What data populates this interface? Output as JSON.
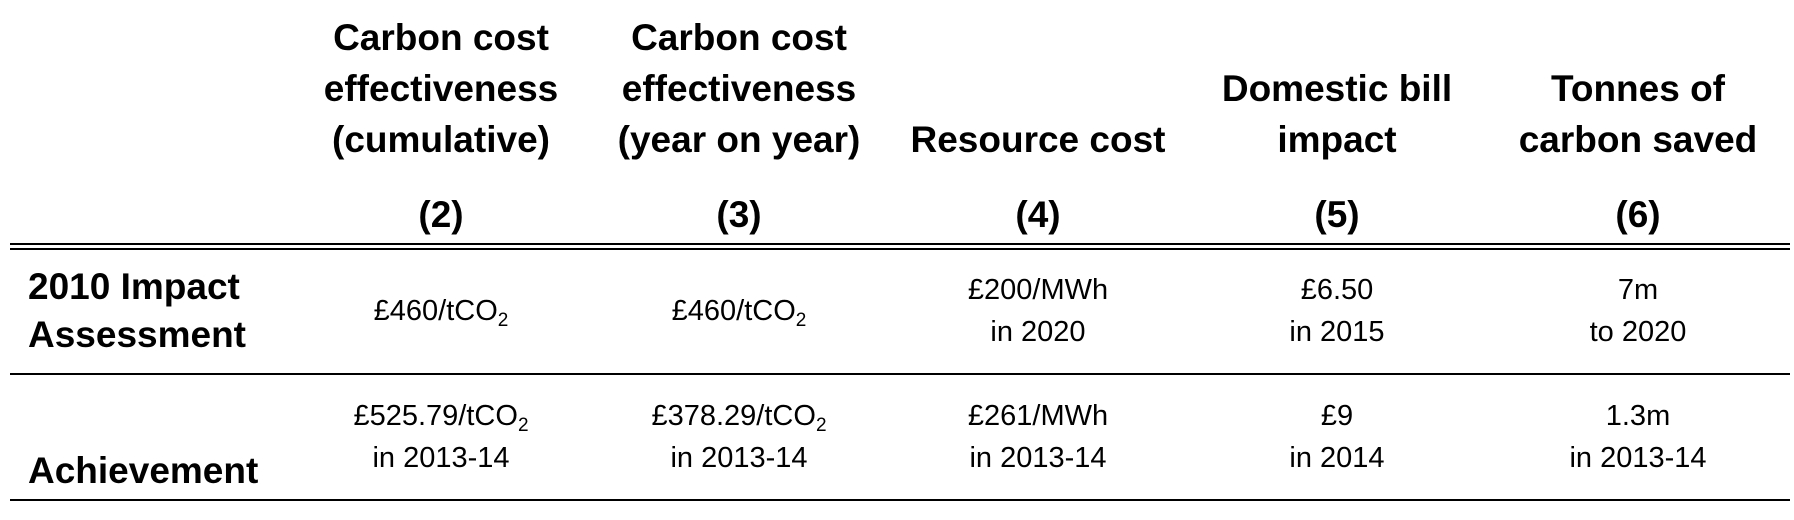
{
  "table": {
    "columns": [
      {
        "lines": [
          "Carbon cost",
          "effectiveness",
          "(cumulative)"
        ],
        "number": "(2)"
      },
      {
        "lines": [
          "Carbon cost",
          "effectiveness",
          "(year on year)"
        ],
        "number": "(3)"
      },
      {
        "lines": [
          "Resource cost"
        ],
        "number": "(4)"
      },
      {
        "lines": [
          "Domestic bill",
          "impact"
        ],
        "number": "(5)"
      },
      {
        "lines": [
          "Tonnes of",
          "carbon saved"
        ],
        "number": "(6)"
      }
    ],
    "rows": [
      {
        "label_lines": [
          "2010 Impact",
          "Assessment"
        ],
        "cells": [
          {
            "value": "£460/tCO",
            "sub": "2",
            "note": ""
          },
          {
            "value": "£460/tCO",
            "sub": "2",
            "note": ""
          },
          {
            "value": "£200/MWh",
            "sub": "",
            "note": "in 2020"
          },
          {
            "value": "£6.50",
            "sub": "",
            "note": "in 2015"
          },
          {
            "value": "7m",
            "sub": "",
            "note": "to 2020"
          }
        ]
      },
      {
        "label_lines": [
          "Achievement"
        ],
        "cells": [
          {
            "value": "£525.79/tCO",
            "sub": "2",
            "note": "in 2013-14"
          },
          {
            "value": "£378.29/tCO",
            "sub": "2",
            "note": "in 2013-14"
          },
          {
            "value": "£261/MWh",
            "sub": "",
            "note": "in 2013-14"
          },
          {
            "value": "£9",
            "sub": "",
            "note": "in 2014"
          },
          {
            "value": "1.3m",
            "sub": "",
            "note": "in 2013-14"
          }
        ]
      }
    ]
  }
}
